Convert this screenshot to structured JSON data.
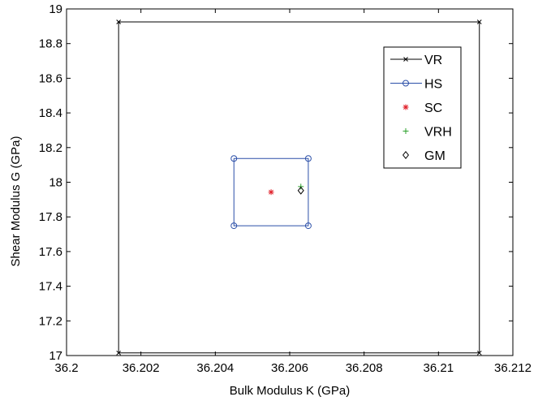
{
  "chart_data": {
    "type": "scatter",
    "title": "",
    "xlabel": "Bulk Modulus K (GPa)",
    "ylabel": "Shear Modulus G (GPa)",
    "xlim": [
      36.2,
      36.212
    ],
    "ylim": [
      17.0,
      19.0
    ],
    "xticks": [
      36.2,
      36.202,
      36.204,
      36.206,
      36.208,
      36.21,
      36.212
    ],
    "xtick_labels": [
      "36.2",
      "36.202",
      "36.204",
      "36.206",
      "36.208",
      "36.21",
      "36.212"
    ],
    "yticks": [
      17.0,
      17.2,
      17.4,
      17.6,
      17.8,
      18.0,
      18.2,
      18.4,
      18.6,
      18.8,
      19.0
    ],
    "ytick_labels": [
      "17",
      "17.2",
      "17.4",
      "17.6",
      "17.8",
      "18",
      "18.2",
      "18.4",
      "18.6",
      "18.8",
      "19"
    ],
    "grid": false,
    "legend_position": "top-right",
    "series": [
      {
        "name": "VR",
        "style": "line",
        "marker": "x",
        "color": "#000000",
        "points": [
          [
            36.2014,
            18.925
          ],
          [
            36.2111,
            18.925
          ],
          [
            36.2111,
            17.015
          ],
          [
            36.2014,
            17.015
          ],
          [
            36.2014,
            18.925
          ]
        ]
      },
      {
        "name": "HS",
        "style": "line",
        "marker": "circle",
        "color": "#2b4fa8",
        "points": [
          [
            36.2045,
            18.137
          ],
          [
            36.2065,
            18.137
          ],
          [
            36.2065,
            17.749
          ],
          [
            36.2045,
            17.749
          ],
          [
            36.2045,
            18.137
          ]
        ]
      },
      {
        "name": "SC",
        "style": "marker",
        "marker": "asterisk",
        "color": "#e0202a",
        "points": [
          [
            36.2055,
            17.943
          ]
        ]
      },
      {
        "name": "VRH",
        "style": "marker",
        "marker": "plus",
        "color": "#2aa02a",
        "points": [
          [
            36.2063,
            17.975
          ]
        ]
      },
      {
        "name": "GM",
        "style": "marker",
        "marker": "diamond",
        "color": "#000000",
        "points": [
          [
            36.2063,
            17.952
          ]
        ]
      }
    ]
  }
}
